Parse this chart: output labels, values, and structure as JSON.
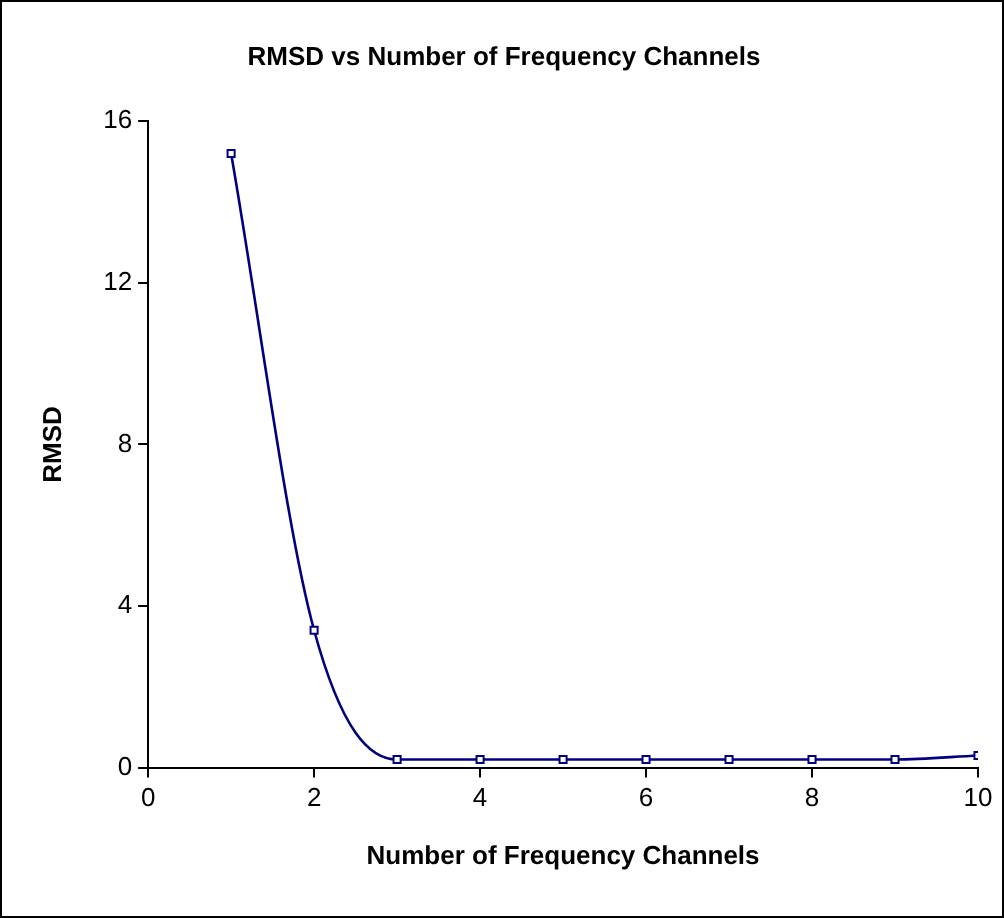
{
  "chart_data": {
    "type": "line",
    "title": "RMSD vs Number of Frequency Channels",
    "xlabel": "Number of Frequency Channels",
    "ylabel": "RMSD",
    "x": [
      1,
      2,
      3,
      4,
      5,
      6,
      7,
      8,
      9,
      10
    ],
    "series": [
      {
        "color": "#000080",
        "values": [
          15.2,
          3.4,
          0.2,
          0.2,
          0.2,
          0.2,
          0.2,
          0.2,
          0.2,
          0.3
        ]
      }
    ],
    "xlim": [
      0,
      10
    ],
    "xticks": [
      0,
      2,
      4,
      6,
      8,
      10
    ],
    "ylim": [
      0,
      16
    ],
    "yticks": [
      0,
      4,
      8,
      12,
      16
    ],
    "grid": false,
    "legend": false,
    "marker": "square",
    "line_style": "solid"
  }
}
